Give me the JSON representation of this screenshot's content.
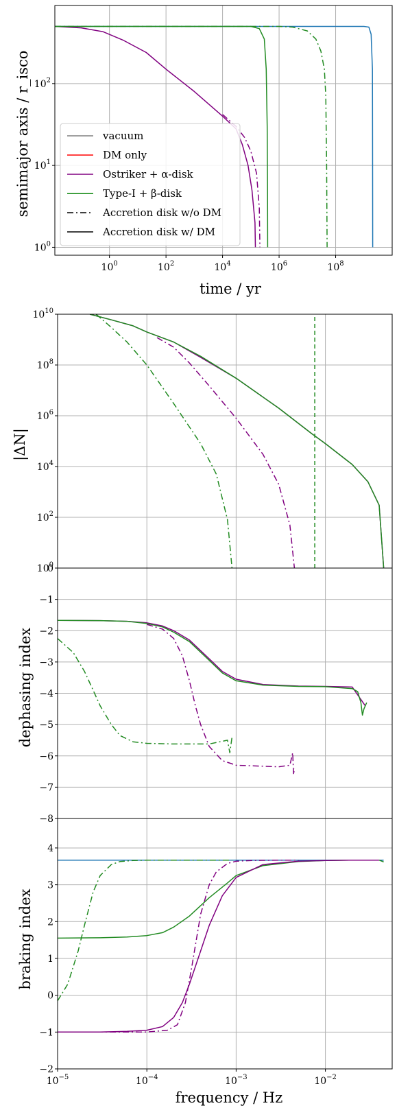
{
  "colors": {
    "vacuum": "#1f77b4",
    "dm": "#d62728",
    "ostriker": "#800080",
    "typeI": "#228B22",
    "grid": "#b0b0b0",
    "legend_vacuum": "#808080",
    "legend_dm": "#ff0000",
    "legend_typeI": "#008000"
  },
  "chart_data": [
    {
      "type": "line",
      "panel": "semimajor-axis",
      "xlabel": "time / yr",
      "ylabel": "semimajor axis / r_isco",
      "xscale": "log",
      "yscale": "log",
      "xlim": [
        0.0117,
        10000000000.0
      ],
      "ylim": [
        0.8,
        900
      ],
      "xticks": [
        1,
        100,
        10000,
        1000000,
        100000000
      ],
      "xtick_labels": [
        "10^0",
        "10^2",
        "10^4",
        "10^6",
        "10^8"
      ],
      "yticks": [
        1,
        10,
        100
      ],
      "ytick_labels": [
        "10^0",
        "10^1",
        "10^2"
      ],
      "grid": true,
      "legend_position": "lower-left",
      "legend": [
        {
          "label": "vacuum",
          "color_key": "legend_vacuum",
          "dash": "solid"
        },
        {
          "label": "DM only",
          "color_key": "legend_dm",
          "dash": "solid"
        },
        {
          "label": "Ostriker + α-disk",
          "color_key": "ostriker",
          "dash": "solid"
        },
        {
          "label": "Type-I + β-disk",
          "color_key": "legend_typeI",
          "dash": "solid"
        },
        {
          "label": "Accretion disk w/o DM",
          "color_key": "black",
          "dash": "dashdot"
        },
        {
          "label": "Accretion disk w/ DM",
          "color_key": "black",
          "dash": "solid"
        }
      ],
      "series": [
        {
          "color_key": "vacuum",
          "dash": "solid",
          "x": [
            0.0117,
            1000000000.0,
            1500000000.0,
            1800000000.0,
            2000000000.0,
            2030000000.0,
            2050000000.0
          ],
          "y": [
            500,
            500,
            490,
            400,
            150,
            20,
            1
          ]
        },
        {
          "color_key": "ostriker",
          "dash": "solid",
          "x": [
            0.0117,
            0.1,
            0.6,
            3,
            20,
            100,
            1000,
            10000,
            30000,
            50000,
            80000,
            110000,
            140000,
            145000
          ],
          "y": [
            500,
            480,
            430,
            340,
            240,
            150,
            80,
            40,
            28,
            18,
            10,
            5,
            2,
            1
          ]
        },
        {
          "color_key": "ostriker",
          "dash": "dashdot",
          "x": [
            10000,
            30000,
            60000,
            100000,
            160000,
            200000,
            210000
          ],
          "y": [
            42,
            30,
            22,
            15,
            8,
            3,
            1
          ]
        },
        {
          "color_key": "typeI",
          "dash": "solid",
          "x": [
            0.0117,
            100000,
            200000,
            300000,
            350000,
            380000,
            390000,
            395000
          ],
          "y": [
            500,
            500,
            470,
            350,
            150,
            30,
            5,
            1
          ]
        },
        {
          "color_key": "typeI",
          "dash": "dashdot",
          "x": [
            0.0117,
            1000000,
            3000000,
            10000000,
            20000000,
            30000000,
            40000000,
            45000000,
            48000000,
            50000000
          ],
          "y": [
            500,
            500,
            490,
            440,
            350,
            250,
            150,
            70,
            10,
            1
          ]
        }
      ]
    },
    {
      "type": "line",
      "panel": "delta-N",
      "xlabel": "",
      "ylabel": "|ΔN|",
      "xscale": "log",
      "yscale": "log",
      "xlim": [
        1e-05,
        0.056
      ],
      "ylim": [
        1,
        10000000000.0
      ],
      "yticks": [
        1,
        100,
        10000,
        1000000,
        100000000,
        10000000000
      ],
      "ytick_labels": [
        "10^0",
        "10^2",
        "10^4",
        "10^6",
        "10^8",
        "10^10"
      ],
      "grid": true,
      "series": [
        {
          "color_key": "ostriker",
          "dash": "solid",
          "x": [
            2.3e-05,
            4e-05,
            7e-05,
            0.0001,
            0.0002,
            0.0004,
            0.001,
            0.003,
            0.007,
            0.01,
            0.02,
            0.03,
            0.04,
            0.045
          ],
          "y": [
            10000000000.0,
            6000000000.0,
            3500000000.0,
            2000000000.0,
            800000000.0,
            200000000.0,
            30000000.0,
            2000000.0,
            200000.0,
            80000.0,
            12000.0,
            2500.0,
            300,
            1
          ]
        },
        {
          "color_key": "typeI",
          "dash": "solid",
          "x": [
            2.3e-05,
            4e-05,
            7e-05,
            0.0001,
            0.0002,
            0.0004,
            0.001,
            0.003,
            0.007,
            0.01,
            0.02,
            0.03,
            0.04,
            0.045
          ],
          "y": [
            10000000000.0,
            6000000000.0,
            3500000000.0,
            2000000000.0,
            800000000.0,
            220000000.0,
            30000000.0,
            2000000.0,
            200000.0,
            80000.0,
            12000.0,
            2500.0,
            300,
            1
          ]
        },
        {
          "color_key": "ostriker",
          "dash": "dashdot",
          "x": [
            0.00013,
            0.0002,
            0.0003,
            0.0005,
            0.001,
            0.002,
            0.003,
            0.004,
            0.0045
          ],
          "y": [
            1200000000.0,
            500000000.0,
            120000000.0,
            15000000.0,
            800000.0,
            30000.0,
            2000.0,
            50,
            1
          ]
        },
        {
          "color_key": "typeI",
          "dash": "dashdot",
          "x": [
            2.7e-05,
            4e-05,
            6e-05,
            0.0001,
            0.0002,
            0.0004,
            0.0006,
            0.0008,
            0.0009
          ],
          "y": [
            10000000000.0,
            3000000000.0,
            800000000.0,
            100000000.0,
            3000000.0,
            80000.0,
            5000.0,
            80,
            1
          ]
        },
        {
          "color_key": "typeI",
          "dash": "dashed",
          "x": [
            0.0076,
            0.0076
          ],
          "y": [
            1,
            10000000000.0
          ]
        }
      ]
    },
    {
      "type": "line",
      "panel": "dephasing-index",
      "xlabel": "",
      "ylabel": "dephasing index",
      "xscale": "log",
      "yscale": "linear",
      "xlim": [
        1e-05,
        0.056
      ],
      "ylim": [
        -8,
        0
      ],
      "yticks": [
        -8,
        -7,
        -6,
        -5,
        -4,
        -3,
        -2,
        -1,
        0
      ],
      "ytick_labels": [
        "−8",
        "−7",
        "−6",
        "−5",
        "−4",
        "−3",
        "−2",
        "−1",
        "0"
      ],
      "grid": true,
      "series": [
        {
          "color_key": "ostriker",
          "dash": "solid",
          "x": [
            1e-05,
            3e-05,
            6e-05,
            0.0001,
            0.00015,
            0.0002,
            0.0003,
            0.0005,
            0.0007,
            0.001,
            0.002,
            0.005,
            0.01,
            0.02,
            0.025,
            0.028
          ],
          "y": [
            -1.67,
            -1.68,
            -1.7,
            -1.75,
            -1.85,
            -2.0,
            -2.3,
            -2.9,
            -3.3,
            -3.55,
            -3.72,
            -3.77,
            -3.78,
            -3.8,
            -4.2,
            -4.4
          ]
        },
        {
          "color_key": "typeI",
          "dash": "solid",
          "x": [
            1e-05,
            3e-05,
            6e-05,
            0.0001,
            0.00015,
            0.0002,
            0.0003,
            0.0005,
            0.0007,
            0.001,
            0.002,
            0.005,
            0.01,
            0.02,
            0.023,
            0.025,
            0.026,
            0.027,
            0.029
          ],
          "y": [
            -1.67,
            -1.68,
            -1.7,
            -1.77,
            -1.88,
            -2.05,
            -2.35,
            -2.95,
            -3.35,
            -3.6,
            -3.74,
            -3.78,
            -3.79,
            -3.85,
            -3.95,
            -4.3,
            -4.7,
            -4.5,
            -4.3
          ]
        },
        {
          "color_key": "ostriker",
          "dash": "dashdot",
          "x": [
            0.0001,
            0.00015,
            0.0002,
            0.00025,
            0.0003,
            0.00035,
            0.0004,
            0.0005,
            0.0007,
            0.001,
            0.002,
            0.003,
            0.004,
            0.0043,
            0.0044,
            0.0045
          ],
          "y": [
            -1.8,
            -1.95,
            -2.25,
            -2.8,
            -3.6,
            -4.4,
            -5.0,
            -5.7,
            -6.15,
            -6.3,
            -6.33,
            -6.35,
            -6.3,
            -5.9,
            -6.6,
            -6.4
          ]
        },
        {
          "color_key": "typeI",
          "dash": "dashdot",
          "x": [
            1e-05,
            1.5e-05,
            2e-05,
            2.5e-05,
            3e-05,
            4e-05,
            5e-05,
            7e-05,
            0.0001,
            0.0002,
            0.0005,
            0.0008,
            0.00085,
            0.0009
          ],
          "y": [
            -2.25,
            -2.7,
            -3.3,
            -3.9,
            -4.4,
            -5.0,
            -5.35,
            -5.55,
            -5.6,
            -5.62,
            -5.62,
            -5.5,
            -5.9,
            -5.4
          ]
        }
      ]
    },
    {
      "type": "line",
      "panel": "braking-index",
      "xlabel": "frequency / Hz",
      "ylabel": "braking index",
      "xscale": "log",
      "yscale": "linear",
      "xlim": [
        1e-05,
        0.056
      ],
      "ylim": [
        -2,
        4.8
      ],
      "xticks": [
        1e-05,
        0.0001,
        0.001,
        0.01
      ],
      "xtick_labels": [
        "10^−5",
        "10^−4",
        "10^−3",
        "10^−2"
      ],
      "yticks": [
        -2,
        -1,
        0,
        1,
        2,
        3,
        4
      ],
      "ytick_labels": [
        "−2",
        "−1",
        "0",
        "1",
        "2",
        "3",
        "4"
      ],
      "grid": true,
      "series": [
        {
          "color_key": "vacuum",
          "dash": "solid",
          "x": [
            1e-05,
            0.045
          ],
          "y": [
            3.667,
            3.667
          ]
        },
        {
          "color_key": "typeI",
          "dash": "solid",
          "x": [
            1e-05,
            3e-05,
            6e-05,
            0.0001,
            0.00015,
            0.0002,
            0.0003,
            0.0005,
            0.0008,
            0.001,
            0.002,
            0.005,
            0.01,
            0.02,
            0.04,
            0.045
          ],
          "y": [
            1.55,
            1.56,
            1.58,
            1.62,
            1.7,
            1.85,
            2.15,
            2.65,
            3.05,
            3.25,
            3.52,
            3.63,
            3.66,
            3.67,
            3.67,
            3.62
          ]
        },
        {
          "color_key": "ostriker",
          "dash": "solid",
          "x": [
            1e-05,
            3e-05,
            6e-05,
            0.0001,
            0.00015,
            0.0002,
            0.00025,
            0.0003,
            0.0004,
            0.0005,
            0.0007,
            0.001,
            0.002,
            0.005,
            0.01,
            0.02,
            0.04
          ],
          "y": [
            -1.0,
            -1.0,
            -0.98,
            -0.95,
            -0.85,
            -0.6,
            -0.2,
            0.3,
            1.2,
            1.9,
            2.7,
            3.2,
            3.55,
            3.64,
            3.66,
            3.67,
            3.67
          ]
        },
        {
          "color_key": "ostriker",
          "dash": "dashdot",
          "x": [
            1e-05,
            5e-05,
            0.0001,
            0.00017,
            0.00022,
            0.00027,
            0.00032,
            0.0004,
            0.0005,
            0.0006,
            0.0008,
            0.001,
            0.0015,
            0.003,
            0.005
          ],
          "y": [
            -1.0,
            -1.0,
            -1.0,
            -0.95,
            -0.8,
            -0.2,
            0.8,
            2.2,
            3.0,
            3.35,
            3.58,
            3.64,
            3.66,
            3.667,
            3.667
          ]
        },
        {
          "color_key": "typeI",
          "dash": "dashdot",
          "x": [
            1e-05,
            1.3e-05,
            1.7e-05,
            2e-05,
            2.5e-05,
            3e-05,
            4e-05,
            5e-05,
            7e-05,
            0.0001,
            0.0002,
            0.0005,
            0.0009
          ],
          "y": [
            -0.15,
            0.3,
            1.2,
            1.9,
            2.8,
            3.25,
            3.55,
            3.63,
            3.66,
            3.667,
            3.667,
            3.667,
            3.667
          ]
        }
      ]
    }
  ]
}
